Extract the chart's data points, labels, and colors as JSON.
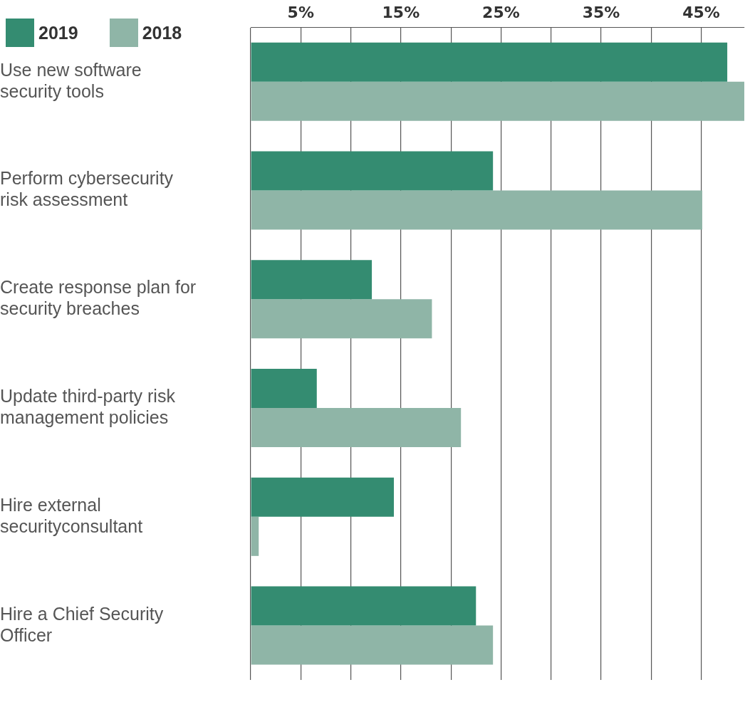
{
  "chart_data": {
    "type": "bar",
    "orientation": "horizontal",
    "categories": [
      "Use new software security tools",
      "Perform cybersecurity risk assessment",
      "Create response plan for security breaches",
      "Update third-party risk management policies",
      "Hire external securityconsultant",
      "Hire a Chief Security Officer"
    ],
    "series": [
      {
        "name": "2019",
        "color": "#348c71",
        "values": [
          47.6,
          24.2,
          12.1,
          6.6,
          14.3,
          22.5
        ]
      },
      {
        "name": "2018",
        "color": "#8fb5a7",
        "values": [
          49.3,
          45.1,
          18.1,
          21.0,
          0.8,
          24.2
        ]
      }
    ],
    "xlim": [
      0,
      49.3
    ],
    "xticks": [
      {
        "value": 0,
        "label": null
      },
      {
        "value": 5,
        "label": "5%"
      },
      {
        "value": 10,
        "label": null
      },
      {
        "value": 15,
        "label": "15%"
      },
      {
        "value": 20,
        "label": null
      },
      {
        "value": 25,
        "label": "25%"
      },
      {
        "value": 30,
        "label": null
      },
      {
        "value": 35,
        "label": "35%"
      },
      {
        "value": 40,
        "label": null
      },
      {
        "value": 45,
        "label": "45%"
      }
    ],
    "grid": "x",
    "legend": "top left"
  }
}
